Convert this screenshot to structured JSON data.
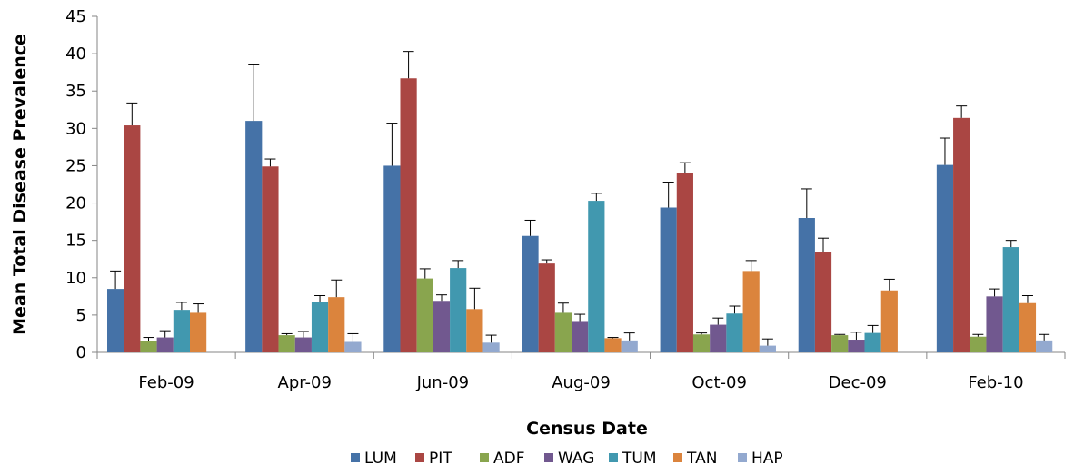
{
  "chart_data": {
    "type": "bar",
    "title": "",
    "xlabel": "Census Date",
    "ylabel": "Mean Total Disease Prevalence",
    "ylim": [
      0,
      45
    ],
    "yticks": [
      0,
      5,
      10,
      15,
      20,
      25,
      30,
      35,
      40,
      45
    ],
    "grid": false,
    "legend_position": "bottom",
    "error_bars": "upper",
    "categories": [
      "Feb-09",
      "Apr-09",
      "Jun-09",
      "Aug-09",
      "Oct-09",
      "Dec-09",
      "Feb-10"
    ],
    "series": [
      {
        "name": "LUM",
        "color": "#4572A7",
        "values": [
          8.5,
          31.0,
          25.0,
          15.6,
          19.4,
          18.0,
          25.1
        ],
        "error": [
          2.4,
          7.5,
          5.7,
          2.1,
          3.4,
          3.9,
          3.6
        ]
      },
      {
        "name": "PIT",
        "color": "#AA4643",
        "values": [
          30.4,
          24.9,
          36.7,
          11.9,
          24.0,
          13.4,
          31.4
        ],
        "error": [
          3.0,
          1.0,
          3.6,
          0.5,
          1.4,
          1.9,
          1.6
        ]
      },
      {
        "name": "ADF",
        "color": "#89A54E",
        "values": [
          1.5,
          2.3,
          9.9,
          5.3,
          2.4,
          2.3,
          2.1
        ],
        "error": [
          0.5,
          0.2,
          1.3,
          1.3,
          0.2,
          0.1,
          0.3
        ]
      },
      {
        "name": "WAG",
        "color": "#71588F",
        "values": [
          2.0,
          2.0,
          6.9,
          4.2,
          3.7,
          1.7,
          7.5
        ],
        "error": [
          0.9,
          0.8,
          0.8,
          0.9,
          0.9,
          1.0,
          1.0
        ]
      },
      {
        "name": "TUM",
        "color": "#4198AF",
        "values": [
          5.7,
          6.7,
          11.3,
          20.3,
          5.2,
          2.6,
          14.1
        ],
        "error": [
          1.0,
          0.9,
          1.0,
          1.0,
          1.0,
          1.0,
          0.9
        ]
      },
      {
        "name": "TAN",
        "color": "#DB843D",
        "values": [
          5.3,
          7.4,
          5.8,
          1.9,
          10.9,
          8.3,
          6.6
        ],
        "error": [
          1.2,
          2.3,
          2.8,
          0.1,
          1.4,
          1.5,
          1.0
        ]
      },
      {
        "name": "HAP",
        "color": "#93A9CF",
        "values": [
          0.0,
          1.4,
          1.3,
          1.6,
          0.9,
          0.0,
          1.6
        ],
        "error": [
          0.0,
          1.1,
          1.0,
          1.0,
          0.9,
          0.0,
          0.8
        ]
      }
    ]
  }
}
